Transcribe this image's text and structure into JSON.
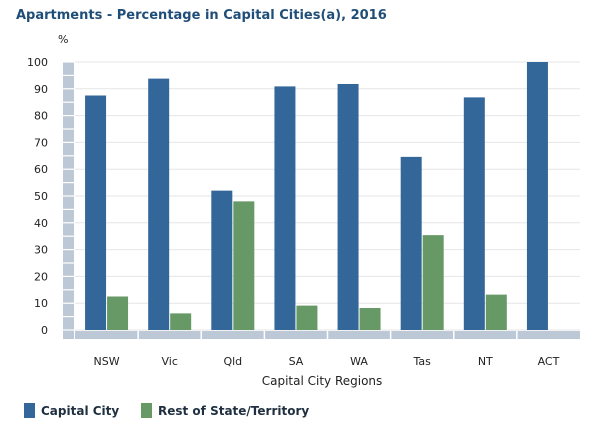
{
  "chart_data": {
    "type": "bar",
    "title": "Apartments - Percentage in Capital Cities(a), 2016",
    "ylabel": "%",
    "xlabel": "Capital City Regions",
    "ylim": [
      0,
      100
    ],
    "yticks": [
      0,
      10,
      20,
      30,
      40,
      50,
      60,
      70,
      80,
      90,
      100
    ],
    "categories": [
      "NSW",
      "Vic",
      "Qld",
      "SA",
      "WA",
      "Tas",
      "NT",
      "ACT"
    ],
    "series": [
      {
        "name": "Capital City",
        "color": "#336699",
        "values": [
          87.5,
          93.8,
          52.0,
          90.9,
          91.8,
          64.6,
          86.8,
          100
        ]
      },
      {
        "name": "Rest of State/Territory",
        "color": "#669966",
        "values": [
          12.5,
          6.2,
          48.0,
          9.1,
          8.2,
          35.4,
          13.2,
          0
        ]
      }
    ],
    "grid": true,
    "legend": "bottom-left"
  }
}
